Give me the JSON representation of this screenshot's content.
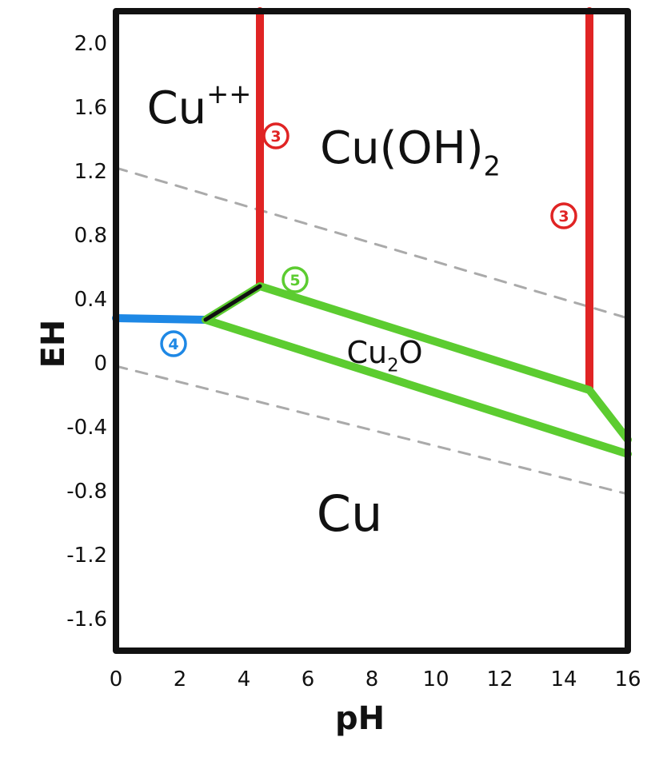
{
  "chart_data": {
    "type": "diagram",
    "xlabel": "pH",
    "ylabel": "EH",
    "xlim": [
      0,
      16
    ],
    "ylim": [
      -1.8,
      2.2
    ],
    "x_ticks": [
      "0",
      "2",
      "4",
      "6",
      "8",
      "10",
      "12",
      "14",
      "16"
    ],
    "y_ticks": [
      {
        "value": 2.0,
        "label": "2.0"
      },
      {
        "value": 1.6,
        "label": "1.6"
      },
      {
        "value": 1.2,
        "label": "1.2"
      },
      {
        "value": 0.8,
        "label": "0.8"
      },
      {
        "value": 0.4,
        "label": "0.4"
      },
      {
        "value": 0.0,
        "label": "0"
      },
      {
        "value": -0.4,
        "label": "-0.4"
      },
      {
        "value": -0.8,
        "label": "-0.8"
      },
      {
        "value": -1.2,
        "label": "-1.2"
      },
      {
        "value": -1.6,
        "label": "-1.6"
      }
    ],
    "regions": [
      {
        "label": "Cu++",
        "x": 2.6,
        "y": 1.5
      },
      {
        "label": "Cu(OH)2",
        "x": 9.2,
        "y": 1.25
      },
      {
        "label": "Cu2O",
        "x": 8.4,
        "y": 0.0
      },
      {
        "label": "Cu",
        "x": 7.3,
        "y": -1.05
      }
    ],
    "lines": [
      {
        "id": "red-left",
        "color": "#e02424",
        "points": [
          [
            4.5,
            2.2
          ],
          [
            4.5,
            0.48
          ]
        ]
      },
      {
        "id": "red-right",
        "color": "#e02424",
        "points": [
          [
            14.8,
            2.2
          ],
          [
            14.8,
            -0.17
          ]
        ]
      },
      {
        "id": "blue",
        "color": "#1e88e5",
        "points": [
          [
            0,
            0.28
          ],
          [
            2.8,
            0.27
          ]
        ]
      },
      {
        "id": "green-upper",
        "color": "#5ccc30",
        "points": [
          [
            2.8,
            0.27
          ],
          [
            4.5,
            0.48
          ],
          [
            14.8,
            -0.17
          ],
          [
            16,
            -0.48
          ]
        ]
      },
      {
        "id": "green-lower",
        "color": "#5ccc30",
        "points": [
          [
            2.8,
            0.27
          ],
          [
            16,
            -0.57
          ]
        ]
      },
      {
        "id": "black-short",
        "color": "#111111",
        "points": [
          [
            2.8,
            0.27
          ],
          [
            4.5,
            0.48
          ]
        ]
      }
    ],
    "dashed_lines": [
      {
        "color": "#aaaaaa",
        "points": [
          [
            0,
            1.22
          ],
          [
            16,
            0.28
          ]
        ]
      },
      {
        "color": "#aaaaaa",
        "points": [
          [
            0,
            -0.02
          ],
          [
            16,
            -0.82
          ]
        ]
      }
    ],
    "markers": [
      {
        "label": "3",
        "color": "#e02424",
        "x": 5.0,
        "y": 1.42
      },
      {
        "label": "3",
        "color": "#e02424",
        "x": 14.0,
        "y": 0.92
      },
      {
        "label": "5",
        "color": "#5ccc30",
        "x": 5.6,
        "y": 0.52
      },
      {
        "label": "4",
        "color": "#1e88e5",
        "x": 1.8,
        "y": 0.12
      }
    ]
  }
}
